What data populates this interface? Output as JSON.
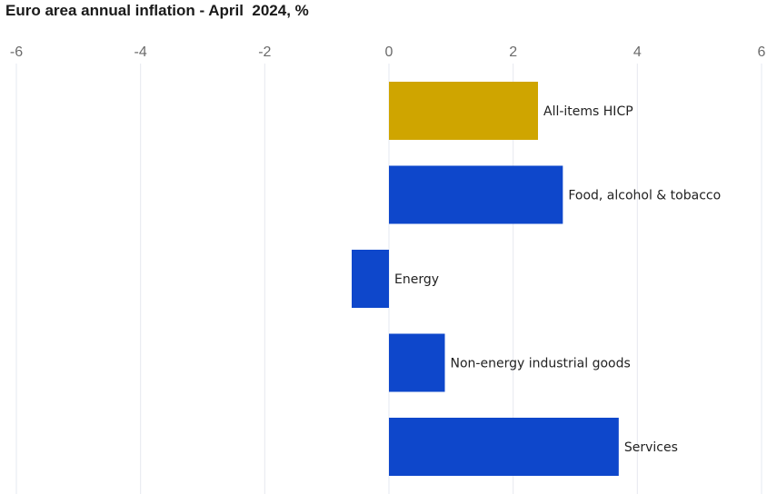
{
  "chart_data": {
    "type": "bar",
    "orientation": "horizontal",
    "title": "Euro area annual inflation - April  2024, %",
    "xlabel": "",
    "ylabel": "",
    "xlim": [
      -6,
      6
    ],
    "x_ticks": [
      -6,
      -4,
      -2,
      0,
      2,
      4,
      6
    ],
    "grid": true,
    "categories": [
      "All-items HICP",
      "Food, alcohol & tobacco",
      "Energy",
      "Non-energy industrial goods",
      "Services"
    ],
    "values": [
      2.4,
      2.8,
      -0.6,
      0.9,
      3.7
    ],
    "bar_colors": [
      "#cfa500",
      "#0e47cb",
      "#0e47cb",
      "#0e47cb",
      "#0e47cb"
    ]
  }
}
